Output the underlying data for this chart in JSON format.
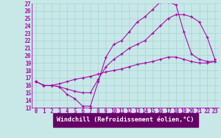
{
  "xlabel": "Windchill (Refroidissement éolien,°C)",
  "xlim": [
    -0.5,
    23.5
  ],
  "ylim": [
    13,
    27
  ],
  "xticks": [
    0,
    1,
    2,
    3,
    4,
    5,
    6,
    7,
    8,
    9,
    10,
    11,
    12,
    13,
    14,
    15,
    16,
    17,
    18,
    19,
    20,
    21,
    22,
    23
  ],
  "yticks": [
    13,
    14,
    15,
    16,
    17,
    18,
    19,
    20,
    21,
    22,
    23,
    24,
    25,
    26,
    27
  ],
  "bg_color": "#c8e8e8",
  "line_color": "#aa00aa",
  "grid_color": "#99cccc",
  "xlabel_bg": "#660066",
  "lines": [
    {
      "x": [
        0,
        1,
        2,
        3,
        4,
        5,
        6,
        7,
        8,
        9,
        10,
        11,
        12,
        13,
        14,
        15,
        16,
        17,
        18,
        19,
        20,
        21,
        22,
        23
      ],
      "y": [
        16.5,
        16.0,
        16.0,
        15.8,
        14.8,
        14.2,
        13.2,
        13.2,
        16.5,
        19.8,
        21.5,
        22.0,
        23.2,
        24.5,
        25.2,
        26.2,
        27.2,
        27.2,
        26.8,
        23.2,
        20.2,
        19.5,
        19.2,
        19.2
      ]
    },
    {
      "x": [
        0,
        1,
        2,
        3,
        4,
        5,
        6,
        7,
        8,
        9,
        10,
        11,
        12,
        13,
        14,
        15,
        16,
        17,
        18,
        19,
        20,
        21,
        22,
        23
      ],
      "y": [
        16.5,
        16.0,
        16.0,
        15.8,
        15.5,
        15.2,
        15.0,
        15.0,
        16.8,
        18.5,
        19.5,
        20.2,
        21.0,
        21.5,
        22.0,
        23.0,
        24.0,
        25.0,
        25.5,
        25.5,
        25.2,
        24.5,
        22.5,
        19.5
      ]
    },
    {
      "x": [
        0,
        1,
        2,
        3,
        4,
        5,
        6,
        7,
        8,
        9,
        10,
        11,
        12,
        13,
        14,
        15,
        16,
        17,
        18,
        19,
        20,
        21,
        22,
        23
      ],
      "y": [
        16.5,
        16.0,
        16.0,
        16.2,
        16.5,
        16.8,
        17.0,
        17.2,
        17.5,
        17.8,
        18.0,
        18.2,
        18.5,
        18.8,
        19.0,
        19.2,
        19.5,
        19.8,
        19.8,
        19.5,
        19.2,
        19.0,
        19.0,
        19.2
      ]
    }
  ],
  "tick_fontsize": 5.5,
  "label_fontsize": 6.5,
  "linewidth": 0.8,
  "markersize": 3.0
}
